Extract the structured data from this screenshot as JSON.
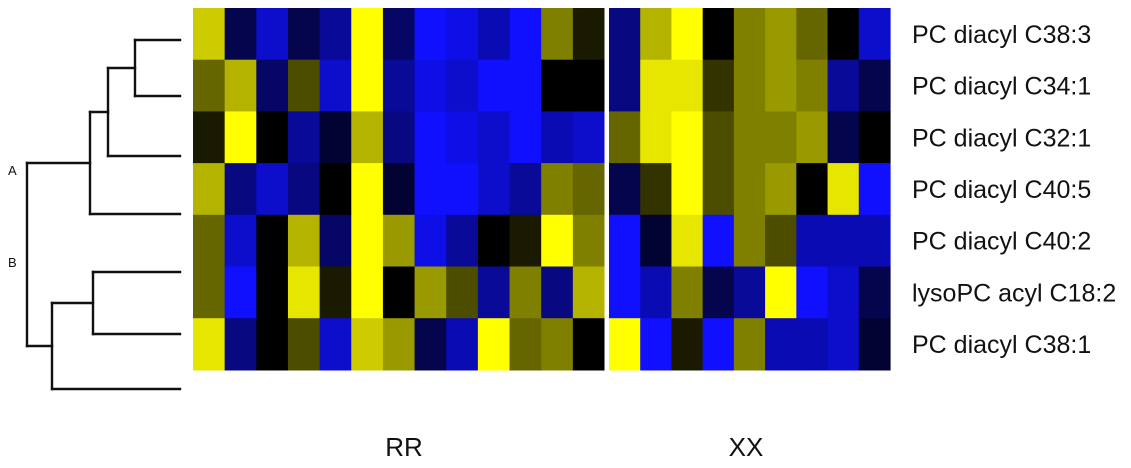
{
  "chart_data": {
    "type": "heatmap",
    "title": "",
    "rows": [
      "PC diacyl C38:3",
      "PC diacyl C34:1",
      "PC diacyl C32:1",
      "PC diacyl C40:5",
      "PC diacyl C40:2",
      "lysoPC acyl C18:2",
      "PC diacyl C38:1"
    ],
    "groups": [
      {
        "label": "RR",
        "columns": 13
      },
      {
        "label": "XX",
        "columns": 9
      }
    ],
    "dendrogram": {
      "cluster_labels": [
        "A",
        "B"
      ],
      "merge_order": [
        {
          "join": [
            "PC diacyl C38:3",
            "PC diacyl C34:1"
          ],
          "height": 1
        },
        {
          "join": [
            "cluster",
            "PC diacyl C32:1"
          ],
          "height": 2
        },
        {
          "join": [
            "cluster",
            "PC diacyl C40:5"
          ],
          "height": 3
        },
        {
          "join": [
            "PC diacyl C40:2",
            "lysoPC acyl C18:2"
          ],
          "height": 2
        },
        {
          "join": [
            "cluster",
            "PC diacyl C38:1"
          ],
          "height": 3.5
        },
        {
          "join": [
            "A",
            "B"
          ],
          "height": 4.5
        }
      ]
    },
    "color_scale": {
      "low": "#1010ff",
      "mid": "#000000",
      "high": "#ffff00"
    },
    "values": [
      [
        0.8,
        -0.3,
        -0.8,
        -0.3,
        -0.6,
        1.0,
        -0.4,
        -1.0,
        -0.9,
        -0.7,
        -1.0,
        0.5,
        0.1,
        -0.5,
        0.7,
        1.0,
        0.0,
        0.5,
        0.6,
        0.4,
        0.0,
        -0.8
      ],
      [
        0.4,
        0.7,
        -0.4,
        0.3,
        -0.8,
        1.0,
        -0.6,
        -0.9,
        -0.8,
        -1.0,
        -1.0,
        0.0,
        0.0,
        -0.5,
        0.9,
        0.9,
        0.2,
        0.5,
        0.6,
        0.5,
        -0.6,
        -0.3
      ],
      [
        0.1,
        1.0,
        0.0,
        -0.6,
        -0.2,
        0.7,
        -0.5,
        -1.0,
        -0.9,
        -0.8,
        -1.0,
        -0.7,
        -0.8,
        0.4,
        0.9,
        1.0,
        0.3,
        0.5,
        0.5,
        0.6,
        -0.3,
        0.0
      ],
      [
        0.7,
        -0.5,
        -0.8,
        -0.5,
        0.0,
        1.0,
        -0.2,
        -1.0,
        -1.0,
        -0.8,
        -0.6,
        0.5,
        0.4,
        -0.3,
        0.2,
        1.0,
        0.3,
        0.5,
        0.6,
        0.0,
        0.9,
        -1.0
      ],
      [
        0.4,
        -0.8,
        0.0,
        0.7,
        -0.4,
        1.0,
        0.6,
        -0.9,
        -0.6,
        0.0,
        0.1,
        1.0,
        0.5,
        -1.0,
        -0.2,
        0.9,
        -1.0,
        0.5,
        0.3,
        -0.7,
        -0.7,
        -0.7
      ],
      [
        0.4,
        -1.0,
        0.0,
        0.9,
        0.1,
        1.0,
        0.0,
        0.6,
        0.3,
        -0.6,
        0.5,
        -0.5,
        0.7,
        -1.0,
        -0.7,
        0.5,
        -0.3,
        -0.6,
        1.0,
        -1.0,
        -0.8,
        -0.3
      ],
      [
        0.9,
        -0.5,
        0.0,
        0.3,
        -0.8,
        0.8,
        0.6,
        -0.3,
        -0.7,
        1.0,
        0.4,
        0.5,
        0.0,
        1.0,
        -1.0,
        0.1,
        -1.0,
        0.5,
        -0.7,
        -0.7,
        -0.8,
        -0.2
      ]
    ]
  }
}
